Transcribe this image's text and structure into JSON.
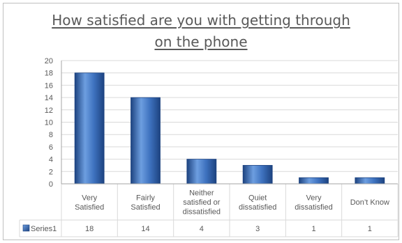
{
  "chart_data": {
    "type": "bar",
    "title_lines": [
      "How satisfied are you with getting through",
      "on the phone"
    ],
    "categories": [
      [
        "Very",
        "Satisfied"
      ],
      [
        "Fairly",
        "Satisfied"
      ],
      [
        "Neither",
        "satisfied or",
        "dissatisfied"
      ],
      [
        "Quiet",
        "dissatisfied"
      ],
      [
        "Very",
        "dissatisfied"
      ],
      [
        "Don’t Know"
      ]
    ],
    "series": [
      {
        "name": "Series1",
        "values": [
          18,
          14,
          4,
          3,
          1,
          1
        ]
      }
    ],
    "ylim": [
      0,
      20
    ],
    "yticks": [
      0,
      2,
      4,
      6,
      8,
      10,
      12,
      14,
      16,
      18,
      20
    ],
    "grid": true,
    "legend": "data-table",
    "colors": {
      "bar_light": "#6d9ee0",
      "bar_mid": "#3e72bf",
      "bar_dark": "#1d4380",
      "text": "#595959",
      "grid": "#d9d9d9"
    }
  }
}
